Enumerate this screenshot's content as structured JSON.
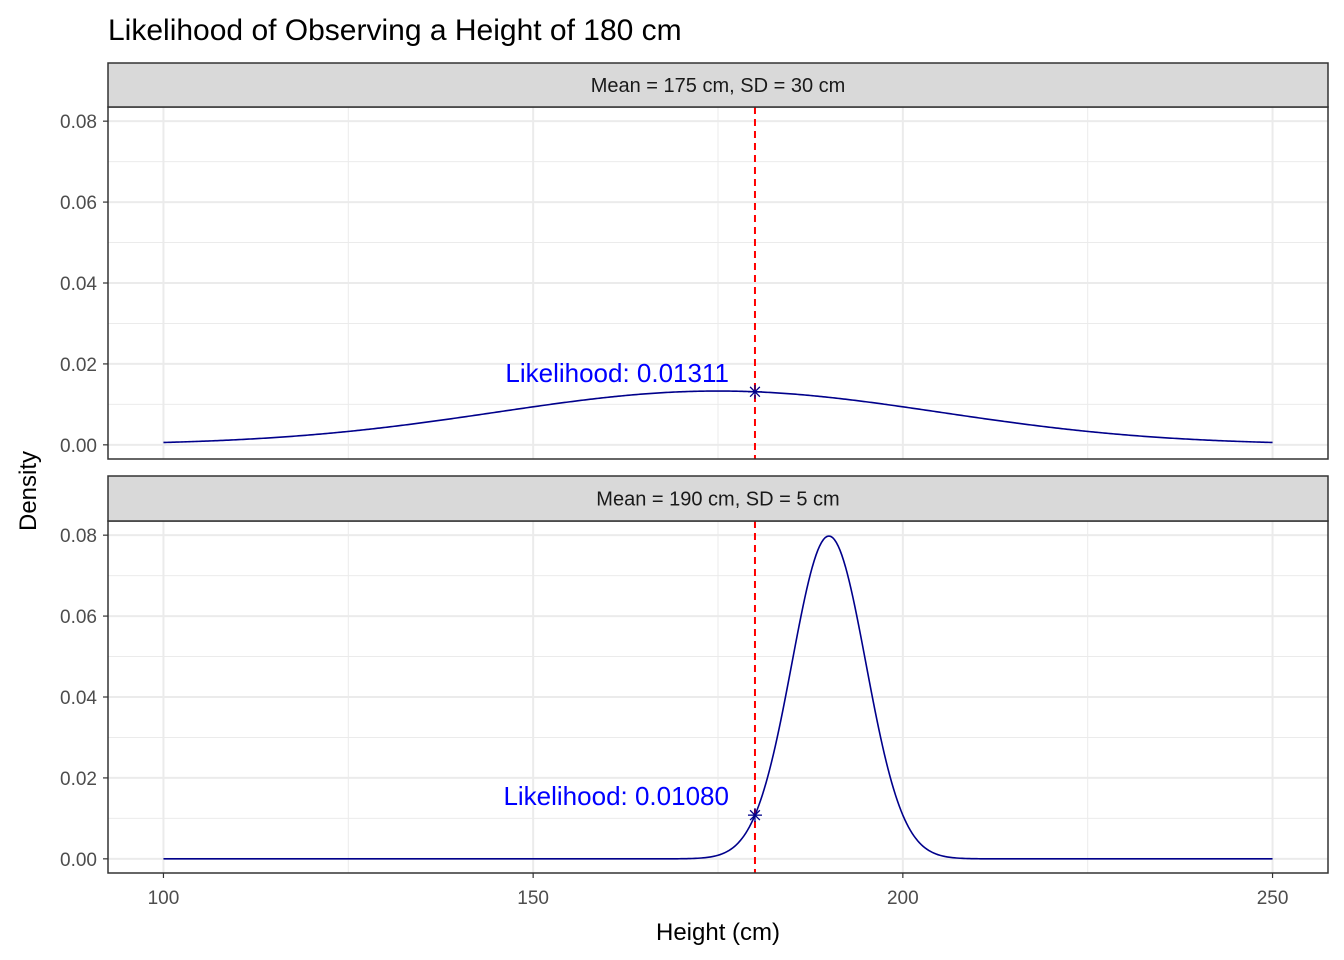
{
  "chart_data": {
    "type": "line",
    "title": "Likelihood of Observing a Height of 180 cm",
    "xlabel": "Height (cm)",
    "ylabel": "Density",
    "xlim": [
      92.5,
      257.5
    ],
    "ylim": [
      -0.0035,
      0.0835
    ],
    "x_ticks": [
      100,
      150,
      200,
      250
    ],
    "x_tick_labels": [
      "100",
      "150",
      "200",
      "250"
    ],
    "y_ticks": [
      0,
      0.02,
      0.04,
      0.06,
      0.08
    ],
    "y_tick_labels": [
      "0.00",
      "0.02",
      "0.04",
      "0.06",
      "0.08"
    ],
    "observed_height": 180,
    "curve_range": [
      100,
      250
    ],
    "grid": true,
    "colors": {
      "curve": "#00008B",
      "vline": "#FF0000",
      "annotation": "#0000FF",
      "strip_fill": "#D9D9D9",
      "grid": "#EBEBEB"
    },
    "panels": [
      {
        "strip_label": "Mean = 175 cm, SD = 30 cm",
        "mean": 175,
        "sd": 30,
        "likelihood": 0.01311,
        "annotation": "Likelihood: 0.01311"
      },
      {
        "strip_label": "Mean = 190 cm, SD = 5 cm",
        "mean": 190,
        "sd": 5,
        "likelihood": 0.0108,
        "annotation": "Likelihood: 0.01080"
      }
    ]
  }
}
